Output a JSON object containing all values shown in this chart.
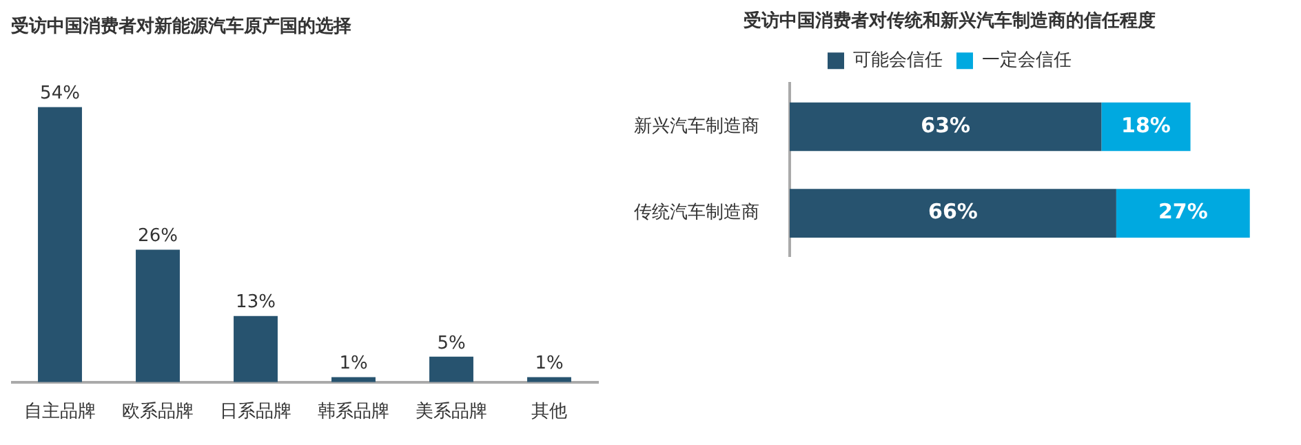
{
  "chart_data": [
    {
      "type": "bar",
      "title": "受访中国消费者对新能源汽车原产国的选择",
      "categories": [
        "自主品牌",
        "欧系品牌",
        "日系品牌",
        "韩系品牌",
        "美系品牌",
        "其他"
      ],
      "values": [
        54,
        26,
        13,
        1,
        5,
        1
      ],
      "value_labels": [
        "54%",
        "26%",
        "13%",
        "1%",
        "5%",
        "1%"
      ],
      "color": "#27536f"
    },
    {
      "type": "bar",
      "title": "受访中国消费者对传统和新兴汽车制造商的信任程度",
      "orientation": "horizontal",
      "stacked": true,
      "legend": "top",
      "categories": [
        "新兴汽车制造商",
        "传统汽车制造商"
      ],
      "series": [
        {
          "name": "可能会信任",
          "color": "#27536f",
          "values": [
            63,
            66
          ],
          "value_labels": [
            "63%",
            "66%"
          ]
        },
        {
          "name": "一定会信任",
          "color": "#00a9e0",
          "values": [
            18,
            27
          ],
          "value_labels": [
            "18%",
            "27%"
          ]
        }
      ]
    }
  ]
}
